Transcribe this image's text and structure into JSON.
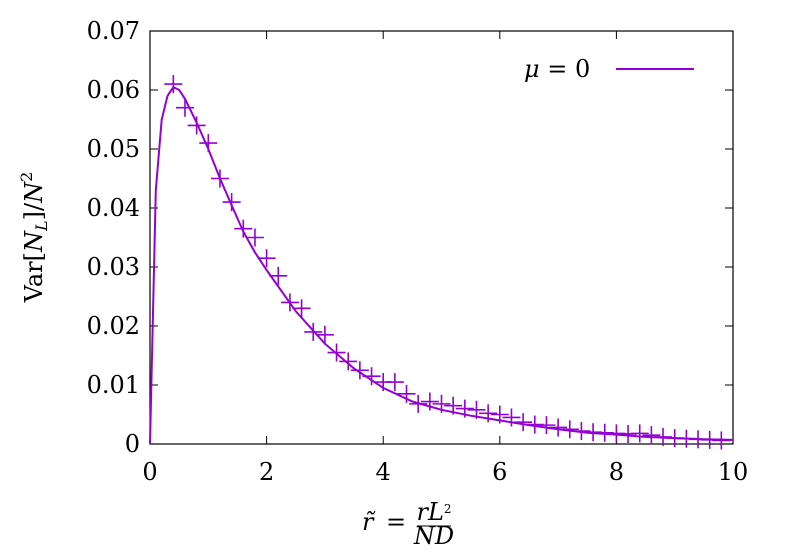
{
  "chart_data": {
    "type": "line",
    "title": "",
    "xlabel": "r̃ = rL²/ND",
    "ylabel": "Var[N_L]/N²",
    "xlim": [
      0,
      10
    ],
    "ylim": [
      0,
      0.07
    ],
    "x_ticks": [
      "0",
      "2",
      "4",
      "6",
      "8",
      "10"
    ],
    "y_ticks": [
      "0",
      "0.01",
      "0.02",
      "0.03",
      "0.04",
      "0.05",
      "0.06",
      "0.07"
    ],
    "grid": false,
    "legend_position": "top-right",
    "color": "#9400d3",
    "series": [
      {
        "name": "μ = 0",
        "style": "line",
        "x": [
          0,
          0.1,
          0.2,
          0.3,
          0.4,
          0.5,
          0.6,
          0.8,
          1.0,
          1.2,
          1.4,
          1.6,
          1.8,
          2.0,
          2.5,
          3.0,
          3.5,
          4.0,
          4.5,
          5.0,
          5.5,
          6.0,
          6.5,
          7.0,
          7.5,
          8.0,
          8.5,
          9.0,
          9.5,
          10.0
        ],
        "y": [
          0,
          0.043,
          0.055,
          0.059,
          0.0605,
          0.06,
          0.0585,
          0.0545,
          0.05,
          0.045,
          0.0405,
          0.036,
          0.0325,
          0.0295,
          0.0225,
          0.017,
          0.0128,
          0.0095,
          0.0072,
          0.0058,
          0.0048,
          0.004,
          0.0032,
          0.0025,
          0.0019,
          0.0016,
          0.0012,
          0.001,
          0.0008,
          0.0007
        ]
      },
      {
        "style": "points",
        "x": [
          0.4,
          0.6,
          0.8,
          1.0,
          1.2,
          1.4,
          1.6,
          1.8,
          2.0,
          2.2,
          2.4,
          2.6,
          2.8,
          3.0,
          3.2,
          3.4,
          3.6,
          3.8,
          4.0,
          4.2,
          4.4,
          4.6,
          4.8,
          5.0,
          5.2,
          5.4,
          5.6,
          5.8,
          6.0,
          6.2,
          6.4,
          6.6,
          6.8,
          7.0,
          7.2,
          7.4,
          7.6,
          7.8,
          8.0,
          8.2,
          8.4,
          8.6,
          8.8,
          9.0,
          9.2,
          9.4,
          9.6,
          9.8
        ],
        "y": [
          0.061,
          0.057,
          0.054,
          0.051,
          0.045,
          0.041,
          0.0365,
          0.035,
          0.0315,
          0.0285,
          0.024,
          0.023,
          0.019,
          0.0185,
          0.0155,
          0.014,
          0.0125,
          0.0115,
          0.0105,
          0.0105,
          0.0085,
          0.0068,
          0.0072,
          0.0068,
          0.0065,
          0.006,
          0.0058,
          0.0052,
          0.005,
          0.0045,
          0.0037,
          0.0033,
          0.0032,
          0.0028,
          0.0025,
          0.0022,
          0.002,
          0.0019,
          0.0018,
          0.0017,
          0.0018,
          0.0015,
          0.0012,
          0.001,
          0.0009,
          0.0008,
          0.0007,
          0.0006
        ]
      }
    ]
  }
}
